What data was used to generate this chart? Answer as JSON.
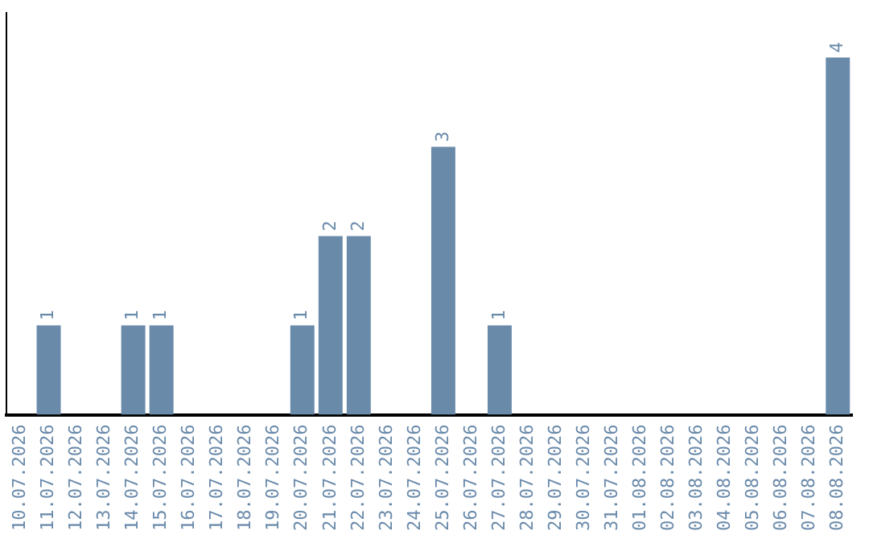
{
  "chart_data": {
    "type": "bar",
    "categories": [
      "10.07.2026",
      "11.07.2026",
      "12.07.2026",
      "13.07.2026",
      "14.07.2026",
      "15.07.2026",
      "16.07.2026",
      "17.07.2026",
      "18.07.2026",
      "19.07.2026",
      "20.07.2026",
      "21.07.2026",
      "22.07.2026",
      "23.07.2026",
      "24.07.2026",
      "25.07.2026",
      "26.07.2026",
      "27.07.2026",
      "28.07.2026",
      "29.07.2026",
      "30.07.2026",
      "31.07.2026",
      "01.08.2026",
      "02.08.2026",
      "03.08.2026",
      "04.08.2026",
      "05.08.2026",
      "06.08.2026",
      "07.08.2026",
      "08.08.2026"
    ],
    "values": [
      0,
      1,
      0,
      0,
      1,
      1,
      0,
      0,
      0,
      0,
      1,
      2,
      2,
      0,
      0,
      3,
      0,
      1,
      0,
      0,
      0,
      0,
      0,
      0,
      0,
      0,
      0,
      0,
      0,
      4
    ],
    "value_labels": [
      null,
      "1",
      null,
      null,
      "1",
      "1",
      null,
      null,
      null,
      null,
      "1",
      "2",
      "2",
      null,
      null,
      "3",
      null,
      "1",
      null,
      null,
      null,
      null,
      null,
      null,
      null,
      null,
      null,
      null,
      null,
      "4"
    ],
    "color": "#6a8aaa",
    "tick_labels": "x",
    "grid": false,
    "legend": false
  }
}
